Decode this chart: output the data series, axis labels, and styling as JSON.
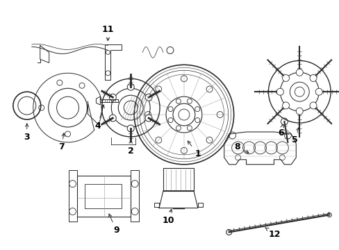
{
  "background_color": "#ffffff",
  "line_color": "#2a2a2a",
  "label_color": "#000000",
  "figsize": [
    4.89,
    3.6
  ],
  "dpi": 100,
  "label_fontsize": 9,
  "label_fontweight": "bold"
}
